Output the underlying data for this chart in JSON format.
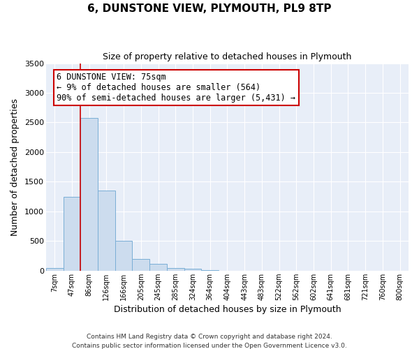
{
  "title": "6, DUNSTONE VIEW, PLYMOUTH, PL9 8TP",
  "subtitle": "Size of property relative to detached houses in Plymouth",
  "xlabel": "Distribution of detached houses by size in Plymouth",
  "ylabel": "Number of detached properties",
  "bar_labels": [
    "7sqm",
    "47sqm",
    "86sqm",
    "126sqm",
    "166sqm",
    "205sqm",
    "245sqm",
    "285sqm",
    "324sqm",
    "364sqm",
    "404sqm",
    "443sqm",
    "483sqm",
    "522sqm",
    "562sqm",
    "602sqm",
    "641sqm",
    "681sqm",
    "721sqm",
    "760sqm",
    "800sqm"
  ],
  "bar_values": [
    50,
    1240,
    2580,
    1350,
    500,
    195,
    110,
    50,
    30,
    5,
    0,
    0,
    0,
    0,
    0,
    0,
    0,
    0,
    0,
    0,
    0
  ],
  "bar_color": "#ccdcee",
  "bar_edgecolor": "#7aaed6",
  "ylim": [
    0,
    3500
  ],
  "yticks": [
    0,
    500,
    1000,
    1500,
    2000,
    2500,
    3000,
    3500
  ],
  "property_line_label": "6 DUNSTONE VIEW: 75sqm",
  "annotation_line1": "← 9% of detached houses are smaller (564)",
  "annotation_line2": "90% of semi-detached houses are larger (5,431) →",
  "annotation_box_color": "#ffffff",
  "annotation_box_edgecolor": "#cc0000",
  "vline_color": "#cc0000",
  "vline_x": 1.5,
  "plot_bg_color": "#e8eef8",
  "fig_bg_color": "#ffffff",
  "footer1": "Contains HM Land Registry data © Crown copyright and database right 2024.",
  "footer2": "Contains public sector information licensed under the Open Government Licence v3.0."
}
